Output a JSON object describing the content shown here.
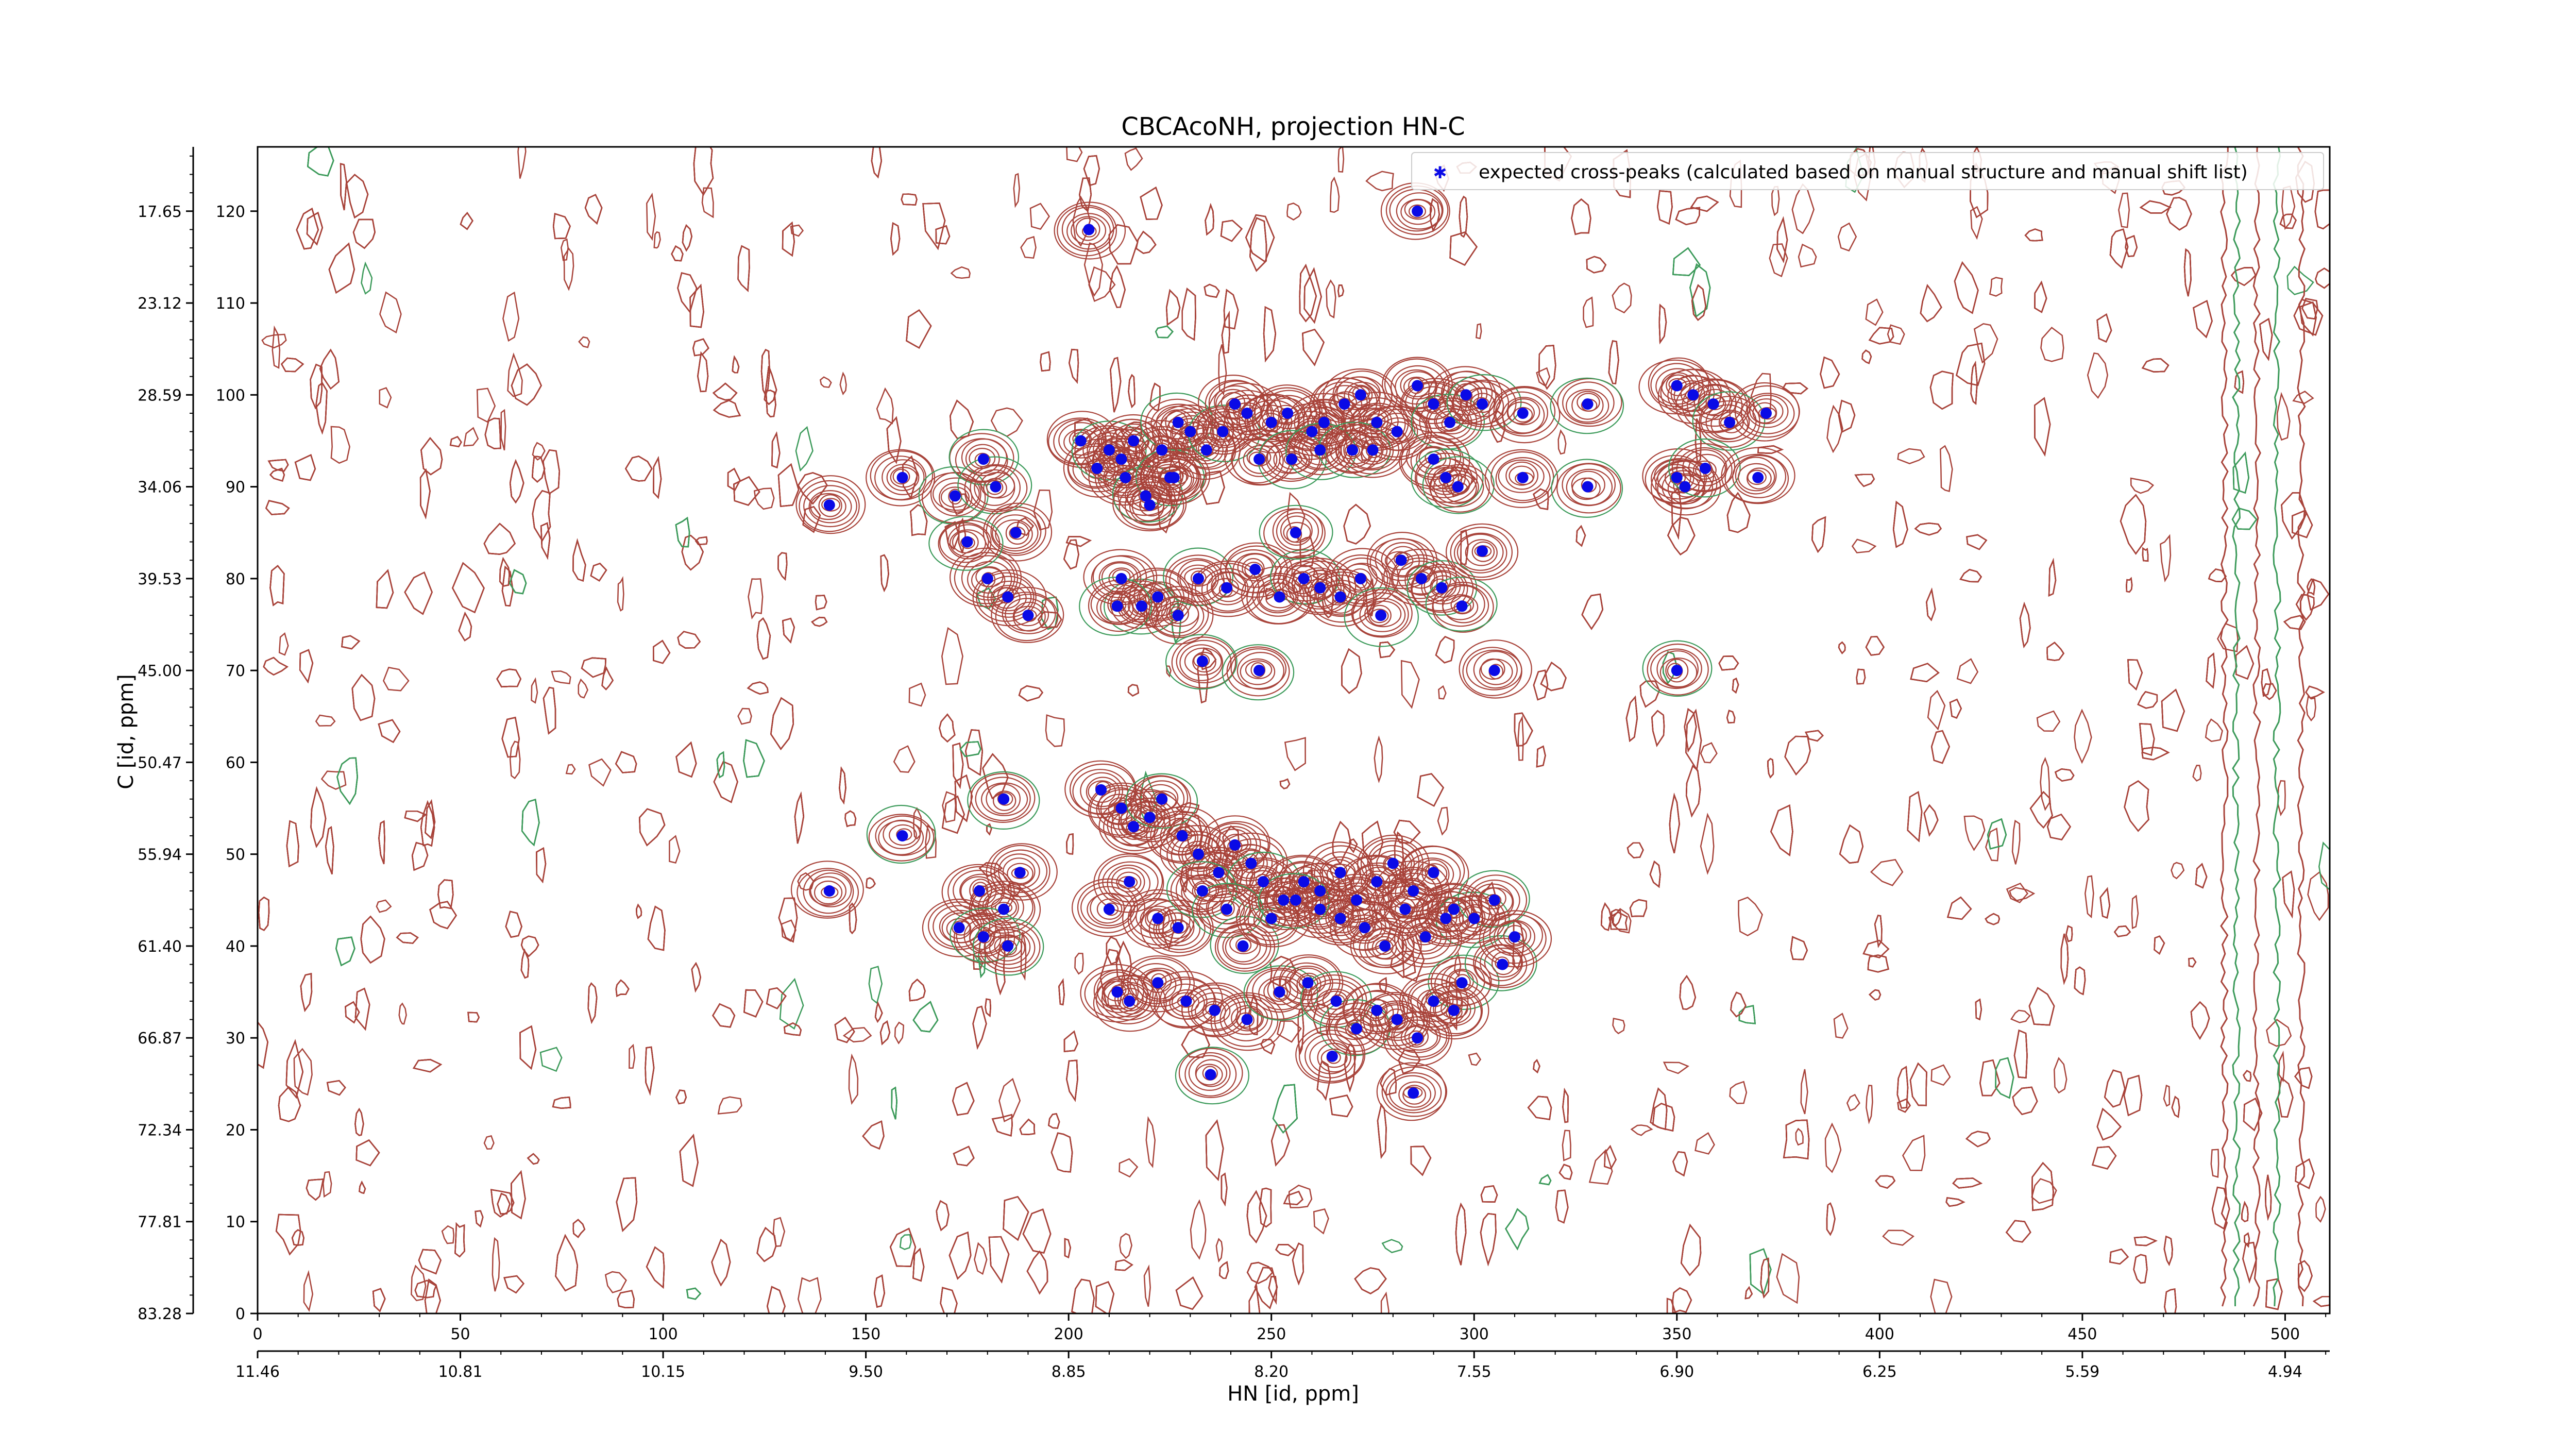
{
  "chart_data": {
    "type": "scatter",
    "title": "CBCAcoNH, projection HN-C",
    "xlabel": "HN [id, ppm]",
    "ylabel": "C [id, ppm]",
    "xlim": [
      0,
      511
    ],
    "ylim": [
      0,
      127
    ],
    "x_ticks": [
      0,
      50,
      100,
      150,
      200,
      250,
      300,
      350,
      400,
      450,
      500
    ],
    "y_ticks": [
      0,
      10,
      20,
      30,
      40,
      50,
      60,
      70,
      80,
      90,
      100,
      110,
      120
    ],
    "x_secondary_ticks": [
      "11.46",
      "10.81",
      "10.15",
      "9.50",
      "8.85",
      "8.20",
      "7.55",
      "6.90",
      "6.25",
      "5.59",
      "4.94"
    ],
    "y_secondary_ticks": [
      "83.28",
      "77.81",
      "72.34",
      "66.87",
      "61.40",
      "55.94",
      "50.47",
      "45.00",
      "39.53",
      "34.06",
      "28.59",
      "23.12",
      "17.65"
    ],
    "legend": {
      "position": "top-right",
      "label": "expected cross-peaks (calculated based on manual structure and manual shift list)"
    },
    "colors": {
      "peaks": "#0a0ae6",
      "contour_positive": "#a8433a",
      "contour_negative": "#3c9a5a"
    },
    "series": [
      {
        "name": "expected cross-peaks (calculated based on manual structure and manual shift list)",
        "points": [
          [
            141,
            88
          ],
          [
            159,
            91
          ],
          [
            172,
            89
          ],
          [
            179,
            93
          ],
          [
            182,
            90
          ],
          [
            187,
            85
          ],
          [
            180,
            80
          ],
          [
            185,
            78
          ],
          [
            190,
            76
          ],
          [
            175,
            84
          ],
          [
            203,
            95
          ],
          [
            207,
            92
          ],
          [
            210,
            94
          ],
          [
            213,
            93
          ],
          [
            216,
            95
          ],
          [
            214,
            91
          ],
          [
            219,
            89
          ],
          [
            223,
            94
          ],
          [
            225,
            91
          ],
          [
            227,
            97
          ],
          [
            230,
            96
          ],
          [
            234,
            94
          ],
          [
            238,
            96
          ],
          [
            241,
            99
          ],
          [
            244,
            98
          ],
          [
            250,
            97
          ],
          [
            254,
            98
          ],
          [
            260,
            96
          ],
          [
            263,
            97
          ],
          [
            268,
            99
          ],
          [
            272,
            100
          ],
          [
            276,
            97
          ],
          [
            281,
            96
          ],
          [
            286,
            101
          ],
          [
            290,
            99
          ],
          [
            294,
            97
          ],
          [
            298,
            100
          ],
          [
            302,
            99
          ],
          [
            312,
            98
          ],
          [
            220,
            88
          ],
          [
            226,
            91
          ],
          [
            247,
            93
          ],
          [
            255,
            93
          ],
          [
            262,
            94
          ],
          [
            270,
            94
          ],
          [
            275,
            94
          ],
          [
            290,
            93
          ],
          [
            293,
            91
          ],
          [
            296,
            90
          ],
          [
            312,
            91
          ],
          [
            328,
            99
          ],
          [
            328,
            90
          ],
          [
            350,
            101
          ],
          [
            354,
            100
          ],
          [
            359,
            99
          ],
          [
            363,
            97
          ],
          [
            372,
            98
          ],
          [
            350,
            91
          ],
          [
            352,
            90
          ],
          [
            357,
            92
          ],
          [
            370,
            91
          ],
          [
            205,
            118
          ],
          [
            286,
            120
          ],
          [
            218,
            77
          ],
          [
            222,
            78
          ],
          [
            232,
            80
          ],
          [
            239,
            79
          ],
          [
            246,
            81
          ],
          [
            252,
            78
          ],
          [
            258,
            80
          ],
          [
            262,
            79
          ],
          [
            267,
            78
          ],
          [
            272,
            80
          ],
          [
            277,
            76
          ],
          [
            282,
            82
          ],
          [
            287,
            80
          ],
          [
            292,
            79
          ],
          [
            297,
            77
          ],
          [
            302,
            83
          ],
          [
            256,
            85
          ],
          [
            213,
            80
          ],
          [
            212,
            77
          ],
          [
            227,
            76
          ],
          [
            233,
            71
          ],
          [
            247,
            70
          ],
          [
            305,
            70
          ],
          [
            350,
            70
          ],
          [
            208,
            57
          ],
          [
            213,
            55
          ],
          [
            216,
            53
          ],
          [
            220,
            54
          ],
          [
            223,
            56
          ],
          [
            228,
            52
          ],
          [
            232,
            50
          ],
          [
            237,
            48
          ],
          [
            241,
            51
          ],
          [
            245,
            49
          ],
          [
            248,
            47
          ],
          [
            253,
            45
          ],
          [
            258,
            47
          ],
          [
            262,
            46
          ],
          [
            267,
            48
          ],
          [
            271,
            45
          ],
          [
            276,
            47
          ],
          [
            280,
            49
          ],
          [
            285,
            46
          ],
          [
            290,
            48
          ],
          [
            295,
            44
          ],
          [
            300,
            43
          ],
          [
            305,
            45
          ],
          [
            184,
            56
          ],
          [
            178,
            46
          ],
          [
            184,
            44
          ],
          [
            188,
            48
          ],
          [
            173,
            42
          ],
          [
            179,
            41
          ],
          [
            185,
            40
          ],
          [
            159,
            52
          ],
          [
            141,
            46
          ],
          [
            210,
            44
          ],
          [
            215,
            47
          ],
          [
            222,
            43
          ],
          [
            227,
            42
          ],
          [
            233,
            46
          ],
          [
            239,
            44
          ],
          [
            243,
            40
          ],
          [
            250,
            43
          ],
          [
            256,
            45
          ],
          [
            262,
            44
          ],
          [
            267,
            43
          ],
          [
            273,
            42
          ],
          [
            278,
            40
          ],
          [
            283,
            44
          ],
          [
            288,
            41
          ],
          [
            293,
            43
          ],
          [
            297,
            36
          ],
          [
            307,
            38
          ],
          [
            310,
            41
          ],
          [
            212,
            35
          ],
          [
            215,
            34
          ],
          [
            222,
            36
          ],
          [
            229,
            34
          ],
          [
            236,
            33
          ],
          [
            244,
            32
          ],
          [
            252,
            35
          ],
          [
            259,
            36
          ],
          [
            266,
            34
          ],
          [
            271,
            31
          ],
          [
            276,
            33
          ],
          [
            281,
            32
          ],
          [
            286,
            30
          ],
          [
            290,
            34
          ],
          [
            295,
            33
          ],
          [
            235,
            26
          ],
          [
            265,
            28
          ],
          [
            285,
            24
          ]
        ]
      }
    ]
  }
}
